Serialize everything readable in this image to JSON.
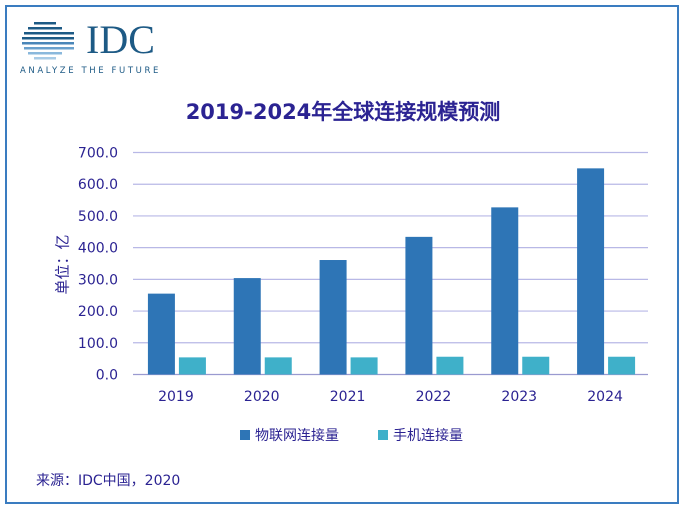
{
  "logo": {
    "text": "IDC",
    "tagline": "ANALYZE THE FUTURE"
  },
  "chart_data": {
    "type": "bar",
    "title": "2019-2024年全球连接规模预测",
    "ylabel": "单位：亿",
    "xlabel": "",
    "categories": [
      "2019",
      "2020",
      "2021",
      "2022",
      "2023",
      "2024"
    ],
    "series": [
      {
        "name": "物联网连接量",
        "color": "#2e75b6",
        "values": [
          255,
          304,
          361,
          434,
          527,
          650
        ]
      },
      {
        "name": "手机连接量",
        "color": "#3fb0c9",
        "values": [
          54,
          54,
          54,
          56,
          56,
          56
        ]
      }
    ],
    "ylim": [
      0,
      700
    ],
    "yticks": [
      "0.0",
      "100.0",
      "200.0",
      "300.0",
      "400.0",
      "500.0",
      "600.0",
      "700.0"
    ],
    "grid": true,
    "legend": "bottom"
  },
  "source": "来源：IDC中国，2020"
}
